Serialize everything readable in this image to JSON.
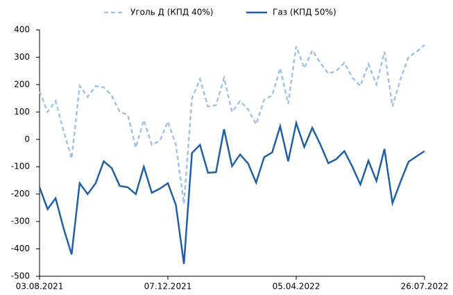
{
  "chart_data": {
    "type": "line",
    "categories": [
      "03.08.2021",
      null,
      null,
      null,
      null,
      null,
      null,
      null,
      null,
      null,
      null,
      null,
      null,
      null,
      null,
      null,
      "07.12.2021",
      null,
      null,
      null,
      null,
      null,
      null,
      null,
      null,
      null,
      null,
      null,
      null,
      null,
      null,
      null,
      "05.04.2022",
      null,
      null,
      null,
      null,
      null,
      null,
      null,
      null,
      null,
      null,
      null,
      null,
      null,
      null,
      null,
      "26.07.2022"
    ],
    "series": [
      {
        "name": "Уголь Д (КПД 40%)",
        "color": "#9dc3e6",
        "dashed": true,
        "values": [
          175,
          100,
          140,
          30,
          -70,
          195,
          155,
          195,
          190,
          160,
          100,
          90,
          -30,
          70,
          -20,
          -5,
          65,
          -20,
          -235,
          150,
          220,
          120,
          125,
          225,
          100,
          140,
          110,
          55,
          145,
          160,
          260,
          130,
          340,
          260,
          325,
          280,
          240,
          250,
          280,
          225,
          195,
          275,
          200,
          320,
          120,
          220,
          300,
          320,
          345
        ]
      },
      {
        "name": "Газ (КПД 50%)",
        "color": "#1f5fa6",
        "dashed": false,
        "values": [
          -175,
          -255,
          -215,
          -325,
          -420,
          -160,
          -200,
          -160,
          -80,
          -105,
          -170,
          -175,
          -200,
          -100,
          -195,
          -180,
          -160,
          -240,
          -455,
          -50,
          -20,
          -122,
          -120,
          37,
          -98,
          -55,
          -88,
          -158,
          -65,
          -48,
          48,
          -80,
          60,
          -28,
          42,
          -18,
          -87,
          -72,
          -43,
          -100,
          -165,
          -78,
          -152,
          -35,
          -233,
          -155,
          -82,
          -62,
          -43
        ]
      }
    ],
    "ylim": [
      -500,
      400
    ],
    "yticks": [
      -500,
      -400,
      -300,
      -200,
      -100,
      0,
      100,
      200,
      300,
      400
    ],
    "legend": "top"
  }
}
